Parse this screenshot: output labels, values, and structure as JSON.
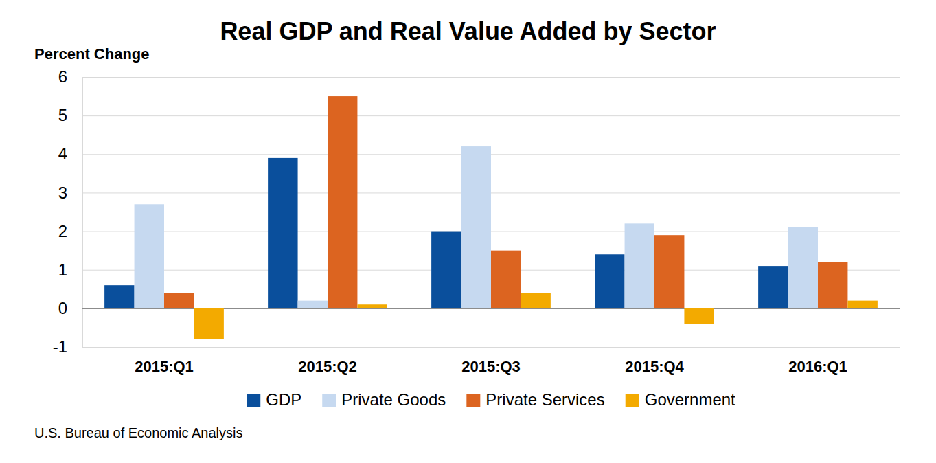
{
  "chart_data": {
    "type": "bar",
    "title": "Real GDP and Real Value Added by Sector",
    "y_label": "Percent Change",
    "source": "U.S. Bureau of Economic Analysis",
    "categories": [
      "2015:Q1",
      "2015:Q2",
      "2015:Q3",
      "2015:Q4",
      "2016:Q1"
    ],
    "series": [
      {
        "name": "GDP",
        "color": "#0a4f9c",
        "values": [
          0.6,
          3.9,
          2.0,
          1.4,
          1.1
        ]
      },
      {
        "name": "Private Goods",
        "color": "#c6d9f0",
        "values": [
          2.7,
          0.2,
          4.2,
          2.2,
          2.1
        ]
      },
      {
        "name": "Private Services",
        "color": "#dc6420",
        "values": [
          0.4,
          5.5,
          1.5,
          1.9,
          1.2
        ]
      },
      {
        "name": "Government",
        "color": "#f3aa00",
        "values": [
          -0.8,
          0.1,
          0.4,
          -0.4,
          0.2
        ]
      }
    ],
    "ylim": [
      -1,
      6
    ],
    "yticks": [
      -1,
      0,
      1,
      2,
      3,
      4,
      5,
      6
    ],
    "grid": true,
    "legend": "bottom"
  }
}
